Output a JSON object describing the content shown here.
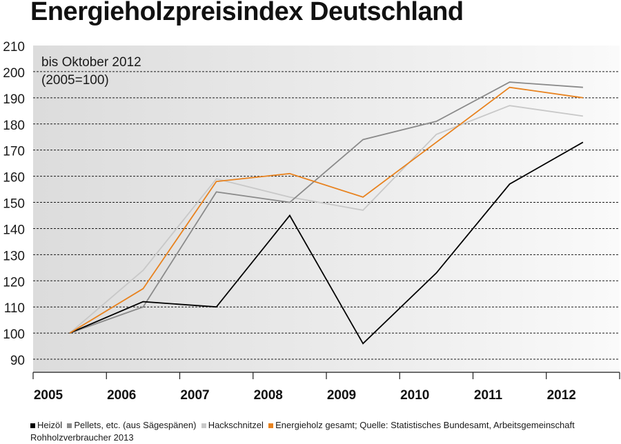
{
  "title": "Energieholzpreisindex Deutschland",
  "subtitle_line1": "bis Oktober 2012",
  "subtitle_line2": "(2005=100)",
  "source_label": "Quelle: Statistisches Bundesamt, Arbeitsgemeinschaft Rohholzverbraucher 2013",
  "colors": {
    "Heizöl": "#000000",
    "Pellets, etc. (aus Sägespänen)": "#8a8a8a",
    "Hackschnitzel": "#c8c8c8",
    "Energieholz gesamt": "#e8821e"
  },
  "chart_data": {
    "type": "line",
    "title": "Energieholzpreisindex Deutschland",
    "subtitle": "bis Oktober 2012 (2005=100)",
    "x_tick_labels": [
      "2005",
      "2006",
      "2007",
      "2008",
      "2009",
      "2010",
      "2011",
      "2012"
    ],
    "y_tick_labels": [
      "90",
      "100",
      "110",
      "120",
      "130",
      "140",
      "150",
      "160",
      "170",
      "180",
      "190",
      "200",
      "210"
    ],
    "ylim": [
      85,
      210
    ],
    "x": [
      2005.5,
      2006.5,
      2007.5,
      2008.5,
      2009.5,
      2010.5,
      2011.5,
      2012.5
    ],
    "grid": true,
    "legend_position": "bottom",
    "series": [
      {
        "name": "Heizöl",
        "values": [
          100,
          112,
          110,
          145,
          96,
          123,
          157,
          173
        ]
      },
      {
        "name": "Pellets, etc. (aus Sägespänen)",
        "values": [
          100,
          110,
          154,
          150,
          174,
          181,
          196,
          194
        ]
      },
      {
        "name": "Hackschnitzel",
        "values": [
          100,
          124,
          159,
          152,
          147,
          176,
          187,
          183
        ]
      },
      {
        "name": "Energieholz gesamt",
        "values": [
          100,
          117,
          158,
          161,
          152,
          173,
          194,
          190
        ]
      }
    ]
  }
}
